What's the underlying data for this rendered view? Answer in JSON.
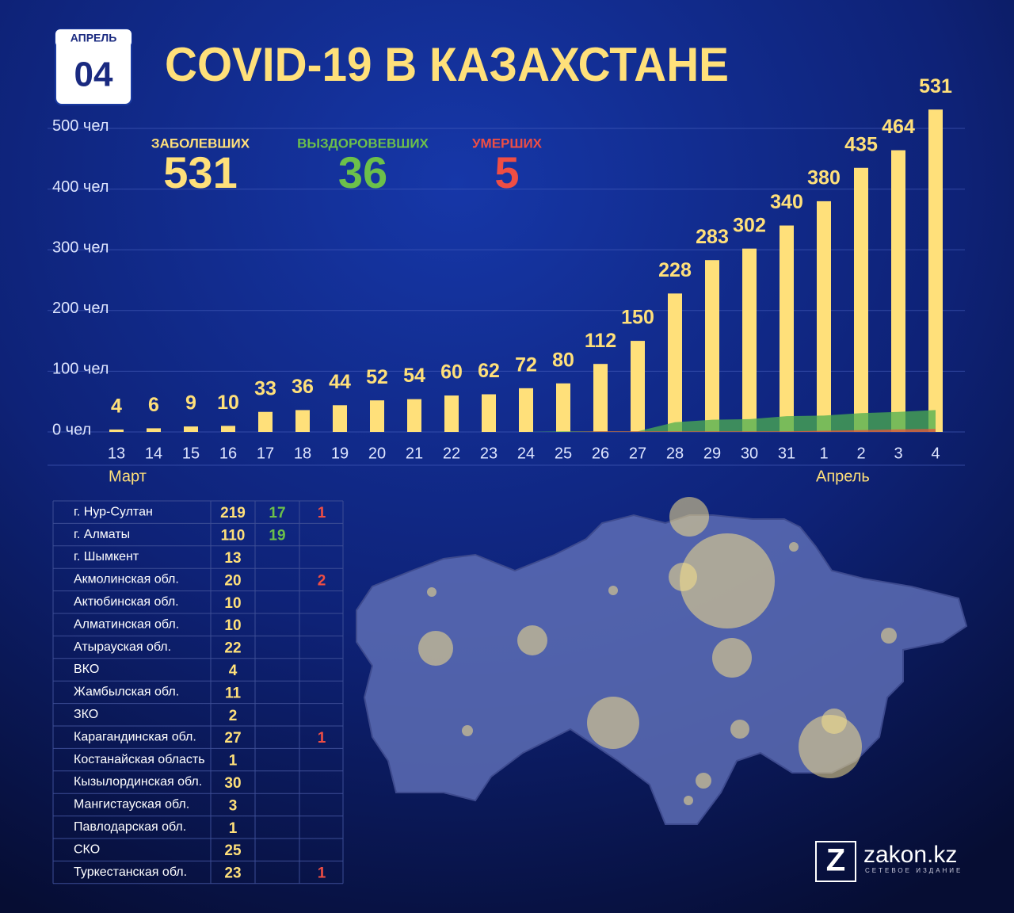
{
  "header": {
    "month": "АПРЕЛЬ",
    "day": "04",
    "title": "COVID-19 В КАЗАХСТАНЕ"
  },
  "summary": [
    {
      "label": "ЗАБОЛЕВШИХ",
      "value": 531,
      "color": "#ffe07a"
    },
    {
      "label": "ВЫЗДОРОВЕВШИХ",
      "value": 36,
      "color": "#6cc04a"
    },
    {
      "label": "УМЕРШИХ",
      "value": 5,
      "color": "#ef4e44"
    }
  ],
  "chart_data": {
    "type": "bar",
    "categories": [
      "13",
      "14",
      "15",
      "16",
      "17",
      "18",
      "19",
      "20",
      "21",
      "22",
      "23",
      "24",
      "25",
      "26",
      "27",
      "28",
      "29",
      "30",
      "31",
      "1",
      "2",
      "3",
      "4"
    ],
    "group_labels": [
      "Март",
      "Апрель"
    ],
    "series": [
      {
        "name": "Заболевших",
        "type": "bar",
        "color": "#ffe07a",
        "values": [
          4,
          6,
          9,
          10,
          33,
          36,
          44,
          52,
          54,
          60,
          62,
          72,
          80,
          112,
          150,
          228,
          283,
          302,
          340,
          380,
          435,
          464,
          531
        ]
      },
      {
        "name": "Выздоровевших",
        "type": "area",
        "color": "#4caf50",
        "values": [
          0,
          0,
          0,
          0,
          0,
          0,
          0,
          0,
          0,
          0,
          0,
          0,
          1,
          1,
          1,
          16,
          20,
          21,
          26,
          27,
          31,
          33,
          36
        ]
      },
      {
        "name": "Умерших",
        "type": "area",
        "color": "#e5533d",
        "values": [
          0,
          0,
          0,
          0,
          0,
          0,
          0,
          0,
          0,
          0,
          0,
          0,
          0,
          1,
          1,
          1,
          1,
          1,
          1,
          2,
          3,
          4,
          5
        ]
      }
    ],
    "ylim": [
      0,
      560
    ],
    "yticks": [
      {
        "value": 0,
        "label": "0 чел"
      },
      {
        "value": 100,
        "label": "100 чел"
      },
      {
        "value": 200,
        "label": "200 чел"
      },
      {
        "value": 300,
        "label": "300 чел"
      },
      {
        "value": 400,
        "label": "400 чел"
      },
      {
        "value": 500,
        "label": "500 чел"
      }
    ],
    "grid": true
  },
  "table": {
    "rows": [
      {
        "region": "г. Нур-Султан",
        "cases": 219,
        "recovered": 17,
        "deaths": 1
      },
      {
        "region": "г. Алматы",
        "cases": 110,
        "recovered": 19
      },
      {
        "region": "г. Шымкент",
        "cases": 13
      },
      {
        "region": "Акмолинская обл.",
        "cases": 20,
        "deaths": 2
      },
      {
        "region": "Актюбинская обл.",
        "cases": 10
      },
      {
        "region": "Алматинская обл.",
        "cases": 10
      },
      {
        "region": "Атырауская обл.",
        "cases": 22
      },
      {
        "region": "ВКО",
        "cases": 4
      },
      {
        "region": "Жамбылская обл.",
        "cases": 11
      },
      {
        "region": "ЗКО",
        "cases": 2
      },
      {
        "region": "Карагандинская обл.",
        "cases": 27,
        "deaths": 1
      },
      {
        "region": "Костанайская область",
        "cases": 1
      },
      {
        "region": "Кызылординская обл.",
        "cases": 30
      },
      {
        "region": "Мангистауская обл.",
        "cases": 3
      },
      {
        "region": "Павлодарская обл.",
        "cases": 1
      },
      {
        "region": "СКО",
        "cases": 25
      },
      {
        "region": "Туркестанская обл.",
        "cases": 23,
        "deaths": 1
      }
    ]
  },
  "logo": {
    "mark": "Z",
    "name": "zakon.kz",
    "tagline": "СЕТЕВОЕ ИЗДАНИЕ"
  }
}
